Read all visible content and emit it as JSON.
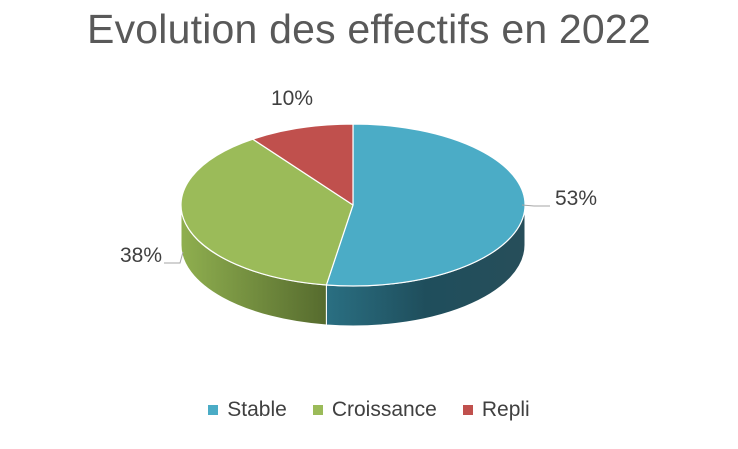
{
  "chart_data": {
    "type": "pie",
    "style": "3d",
    "title": "Evolution des effectifs en 2022",
    "categories": [
      "Stable",
      "Croissance",
      "Repli"
    ],
    "values": [
      53,
      38,
      10
    ],
    "labels": [
      "53%",
      "38%",
      "10%"
    ],
    "colors": [
      "#4BACC6",
      "#9BBB59",
      "#C0504D"
    ],
    "legend": "bottom"
  }
}
